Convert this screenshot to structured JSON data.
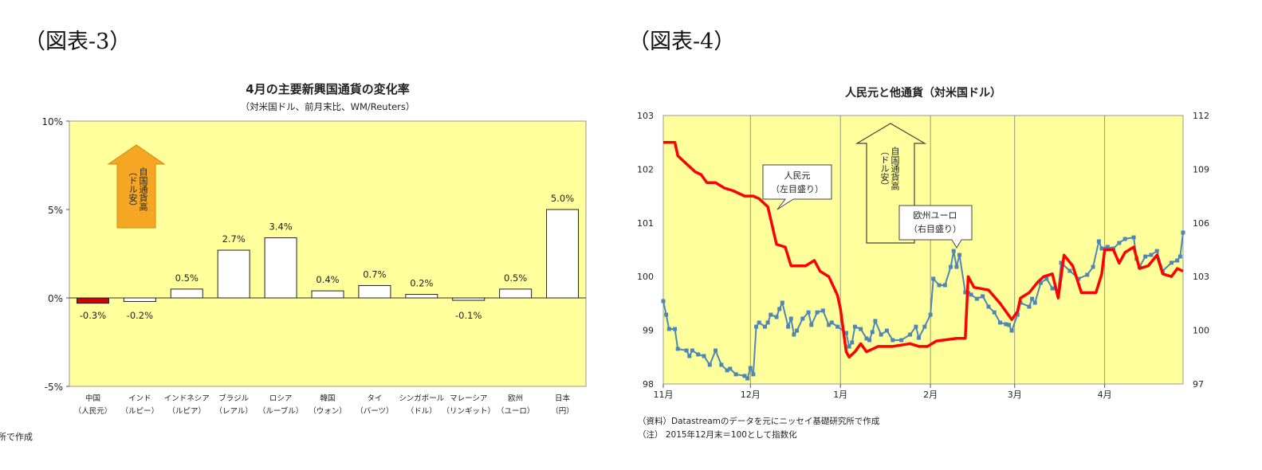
{
  "figures": [
    {
      "label": "（図表-3）"
    },
    {
      "label": "（図表-4）"
    }
  ],
  "chart_data": [
    {
      "type": "bar",
      "title": "4月の主要新興国通貨の変化率",
      "subtitle": "（対米国ドル、前月末比、WM/Reuters）",
      "categories": [
        [
          "中国",
          "（人民元）"
        ],
        [
          "インド",
          "（ルピー）"
        ],
        [
          "インドネシア",
          "（ルピア）"
        ],
        [
          "ブラジル",
          "（レアル）"
        ],
        [
          "ロシア",
          "（ルーブル）"
        ],
        [
          "韓国",
          "（ウォン）"
        ],
        [
          "タイ",
          "（バーツ）"
        ],
        [
          "シンガポール",
          "（ドル）"
        ],
        [
          "マレーシア",
          "（リンギット）"
        ],
        [
          "欧州",
          "（ユーロ）"
        ],
        [
          "日本",
          "（円）"
        ]
      ],
      "values": [
        -0.3,
        -0.2,
        0.5,
        2.7,
        3.4,
        0.4,
        0.7,
        0.2,
        -0.1,
        0.5,
        5.0
      ],
      "data_labels": [
        "-0.3%",
        "-0.2%",
        "0.5%",
        "2.7%",
        "3.4%",
        "0.4%",
        "0.7%",
        "0.2%",
        "-0.1%",
        "0.5%",
        "5.0%"
      ],
      "ylim": [
        -5,
        10
      ],
      "yticks": [
        {
          "v": 10,
          "label": "10%"
        },
        {
          "v": 5,
          "label": "5%"
        },
        {
          "v": 0,
          "label": "0%"
        },
        {
          "v": -5,
          "label": "-5%"
        }
      ],
      "annotation": {
        "line1": "自国通貨高",
        "line2": "（ドル安）"
      },
      "colors": {
        "plot_bg": "#ffff9c",
        "highlight": "#d40000",
        "bar": "#ffffff",
        "arrow": "#f5a623"
      },
      "grid": false,
      "source": "（資料）Datastreamのデータを元にニッセイ基礎研究所で作成"
    },
    {
      "type": "line",
      "title": "人民元と他通貨（対米国ドル）",
      "xlim": [
        "2015-11-01",
        "2016-04-28"
      ],
      "xticks": [
        {
          "date": "2015-11-01",
          "label": "11月"
        },
        {
          "date": "2015-12-01",
          "label": "12月"
        },
        {
          "date": "2016-01-01",
          "label": "1月"
        },
        {
          "date": "2016-02-01",
          "label": "2月"
        },
        {
          "date": "2016-03-01",
          "label": "3月"
        },
        {
          "date": "2016-04-01",
          "label": "4月"
        }
      ],
      "ylim_left": [
        98,
        103
      ],
      "yticks_left": [
        "98",
        "99",
        "100",
        "101",
        "102",
        "103"
      ],
      "ylim_right": [
        97,
        112
      ],
      "yticks_right": [
        "97",
        "100",
        "103",
        "106",
        "109",
        "112"
      ],
      "grid": "vertical-monthly",
      "annotation": {
        "line1": "自国通貨高",
        "line2": "（ドル安）"
      },
      "series": [
        {
          "name": "人民元",
          "label_note": "（左目盛り）",
          "axis": "left",
          "color": "#ff0000",
          "points": [
            [
              "2015-11-01",
              102.5
            ],
            [
              "2015-11-05",
              102.5
            ],
            [
              "2015-11-06",
              102.25
            ],
            [
              "2015-11-09",
              102.1
            ],
            [
              "2015-11-12",
              101.95
            ],
            [
              "2015-11-14",
              101.9
            ],
            [
              "2015-11-16",
              101.75
            ],
            [
              "2015-11-19",
              101.75
            ],
            [
              "2015-11-22",
              101.65
            ],
            [
              "2015-11-25",
              101.6
            ],
            [
              "2015-11-29",
              101.5
            ],
            [
              "2015-12-02",
              101.5
            ],
            [
              "2015-12-04",
              101.45
            ],
            [
              "2015-12-07",
              101.3
            ],
            [
              "2015-12-10",
              100.6
            ],
            [
              "2015-12-13",
              100.55
            ],
            [
              "2015-12-15",
              100.2
            ],
            [
              "2015-12-17",
              100.2
            ],
            [
              "2015-12-20",
              100.2
            ],
            [
              "2015-12-23",
              100.3
            ],
            [
              "2015-12-25",
              100.1
            ],
            [
              "2015-12-28",
              100.0
            ],
            [
              "2015-12-31",
              99.65
            ],
            [
              "2016-01-01",
              99.4
            ],
            [
              "2016-01-03",
              98.6
            ],
            [
              "2016-01-04",
              98.5
            ],
            [
              "2016-01-06",
              98.6
            ],
            [
              "2016-01-08",
              98.75
            ],
            [
              "2016-01-10",
              98.6
            ],
            [
              "2016-01-14",
              98.7
            ],
            [
              "2016-01-19",
              98.7
            ],
            [
              "2016-01-25",
              98.75
            ],
            [
              "2016-01-28",
              98.7
            ],
            [
              "2016-01-31",
              98.7
            ],
            [
              "2016-02-03",
              98.8
            ],
            [
              "2016-02-10",
              98.85
            ],
            [
              "2016-02-13",
              98.85
            ],
            [
              "2016-02-14",
              100.0
            ],
            [
              "2016-02-16",
              99.8
            ],
            [
              "2016-02-21",
              99.75
            ],
            [
              "2016-02-25",
              99.5
            ],
            [
              "2016-02-29",
              99.2
            ],
            [
              "2016-03-02",
              99.35
            ],
            [
              "2016-03-03",
              99.6
            ],
            [
              "2016-03-06",
              99.7
            ],
            [
              "2016-03-09",
              99.9
            ],
            [
              "2016-03-11",
              100.0
            ],
            [
              "2016-03-14",
              100.05
            ],
            [
              "2016-03-16",
              99.6
            ],
            [
              "2016-03-18",
              100.4
            ],
            [
              "2016-03-21",
              100.2
            ],
            [
              "2016-03-24",
              99.7
            ],
            [
              "2016-03-29",
              99.7
            ],
            [
              "2016-03-31",
              100.05
            ],
            [
              "2016-04-01",
              100.5
            ],
            [
              "2016-04-04",
              100.5
            ],
            [
              "2016-04-06",
              100.25
            ],
            [
              "2016-04-08",
              100.45
            ],
            [
              "2016-04-11",
              100.55
            ],
            [
              "2016-04-13",
              100.15
            ],
            [
              "2016-04-16",
              100.2
            ],
            [
              "2016-04-19",
              100.4
            ],
            [
              "2016-04-21",
              100.05
            ],
            [
              "2016-04-24",
              100.0
            ],
            [
              "2016-04-26",
              100.15
            ],
            [
              "2016-04-28",
              100.1
            ]
          ]
        },
        {
          "name": "欧州ユーロ",
          "label_note": "（右目盛り）",
          "axis": "right",
          "color": "#4f86b8",
          "points": [
            [
              "2015-11-01",
              101.63
            ],
            [
              "2015-11-02",
              100.87
            ],
            [
              "2015-11-03",
              100.07
            ],
            [
              "2015-11-05",
              100.07
            ],
            [
              "2015-11-06",
              98.96
            ],
            [
              "2015-11-09",
              98.87
            ],
            [
              "2015-11-10",
              98.56
            ],
            [
              "2015-11-11",
              98.87
            ],
            [
              "2015-11-13",
              98.65
            ],
            [
              "2015-11-15",
              98.56
            ],
            [
              "2015-11-17",
              98.07
            ],
            [
              "2015-11-19",
              98.87
            ],
            [
              "2015-11-21",
              98.07
            ],
            [
              "2015-11-23",
              97.76
            ],
            [
              "2015-11-24",
              97.85
            ],
            [
              "2015-11-26",
              97.54
            ],
            [
              "2015-11-29",
              97.45
            ],
            [
              "2015-11-30",
              97.31
            ],
            [
              "2015-12-01",
              97.89
            ],
            [
              "2015-12-02",
              97.54
            ],
            [
              "2015-12-03",
              100.2
            ],
            [
              "2015-12-04",
              100.43
            ],
            [
              "2015-12-06",
              100.2
            ],
            [
              "2015-12-07",
              100.43
            ],
            [
              "2015-12-08",
              100.87
            ],
            [
              "2015-12-10",
              100.74
            ],
            [
              "2015-12-11",
              101.19
            ],
            [
              "2015-12-12",
              101.54
            ],
            [
              "2015-12-14",
              100.2
            ],
            [
              "2015-12-15",
              100.65
            ],
            [
              "2015-12-16",
              99.76
            ],
            [
              "2015-12-17",
              99.98
            ],
            [
              "2015-12-19",
              100.65
            ],
            [
              "2015-12-21",
              101.0
            ],
            [
              "2015-12-22",
              100.3
            ],
            [
              "2015-12-24",
              101.0
            ],
            [
              "2015-12-26",
              101.1
            ],
            [
              "2015-12-28",
              100.3
            ],
            [
              "2015-12-29",
              100.43
            ],
            [
              "2015-12-31",
              100.2
            ],
            [
              "2016-01-03",
              99.85
            ],
            [
              "2016-01-04",
              99.09
            ],
            [
              "2016-01-05",
              99.32
            ],
            [
              "2016-01-06",
              100.2
            ],
            [
              "2016-01-08",
              100.07
            ],
            [
              "2016-01-10",
              99.54
            ],
            [
              "2016-01-11",
              99.45
            ],
            [
              "2016-01-12",
              99.9
            ],
            [
              "2016-01-13",
              100.52
            ],
            [
              "2016-01-15",
              99.76
            ],
            [
              "2016-01-17",
              99.98
            ],
            [
              "2016-01-19",
              99.45
            ],
            [
              "2016-01-22",
              99.45
            ],
            [
              "2016-01-25",
              99.76
            ],
            [
              "2016-01-27",
              100.2
            ],
            [
              "2016-01-28",
              99.58
            ],
            [
              "2016-01-30",
              100.2
            ],
            [
              "2016-02-01",
              100.87
            ],
            [
              "2016-02-02",
              102.88
            ],
            [
              "2016-02-04",
              102.52
            ],
            [
              "2016-02-06",
              102.52
            ],
            [
              "2016-02-08",
              103.54
            ],
            [
              "2016-02-09",
              104.43
            ],
            [
              "2016-02-10",
              103.54
            ],
            [
              "2016-02-11",
              104.21
            ],
            [
              "2016-02-13",
              102.12
            ],
            [
              "2016-02-14",
              102.08
            ],
            [
              "2016-02-15",
              101.99
            ],
            [
              "2016-02-17",
              101.76
            ],
            [
              "2016-02-19",
              101.9
            ],
            [
              "2016-02-21",
              101.32
            ],
            [
              "2016-02-23",
              101.0
            ],
            [
              "2016-02-25",
              100.43
            ],
            [
              "2016-02-27",
              100.34
            ],
            [
              "2016-02-28",
              100.3
            ],
            [
              "2016-02-29",
              99.98
            ],
            [
              "2016-03-02",
              100.87
            ],
            [
              "2016-03-03",
              101.54
            ],
            [
              "2016-03-06",
              101.32
            ],
            [
              "2016-03-07",
              101.76
            ],
            [
              "2016-03-08",
              101.54
            ],
            [
              "2016-03-10",
              102.65
            ],
            [
              "2016-03-12",
              102.88
            ],
            [
              "2016-03-14",
              102.34
            ],
            [
              "2016-03-16",
              102.21
            ],
            [
              "2016-03-17",
              103.77
            ],
            [
              "2016-03-20",
              103.32
            ],
            [
              "2016-03-23",
              102.88
            ],
            [
              "2016-03-26",
              103.1
            ],
            [
              "2016-03-28",
              103.54
            ],
            [
              "2016-03-30",
              104.97
            ],
            [
              "2016-03-31",
              104.57
            ],
            [
              "2016-04-02",
              104.66
            ],
            [
              "2016-04-04",
              104.57
            ],
            [
              "2016-04-06",
              104.88
            ],
            [
              "2016-04-08",
              105.1
            ],
            [
              "2016-04-11",
              105.19
            ],
            [
              "2016-04-12",
              103.99
            ],
            [
              "2016-04-13",
              103.54
            ],
            [
              "2016-04-15",
              104.12
            ],
            [
              "2016-04-17",
              104.21
            ],
            [
              "2016-04-19",
              104.43
            ],
            [
              "2016-04-21",
              103.32
            ],
            [
              "2016-04-24",
              103.77
            ],
            [
              "2016-04-26",
              103.9
            ],
            [
              "2016-04-27",
              104.12
            ],
            [
              "2016-04-28",
              105.46
            ]
          ]
        }
      ],
      "colors": {
        "plot_bg": "#ffff9c",
        "grid": "#808080"
      },
      "source": "（資料）Datastreamのデータを元にニッセイ基礎研究所で作成",
      "note": "（注） 2015年12月末＝100として指数化"
    }
  ]
}
